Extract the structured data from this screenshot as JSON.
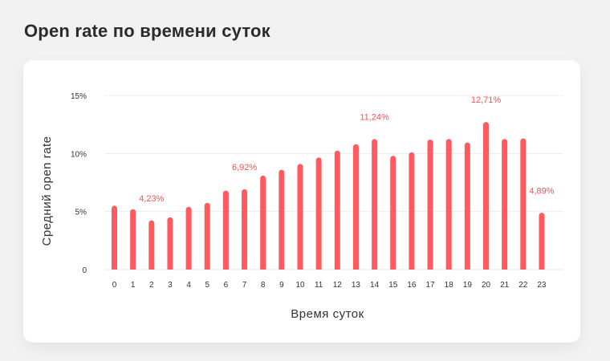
{
  "page": {
    "title": "Open rate по времени суток"
  },
  "chart_data": {
    "type": "bar",
    "title": "",
    "xlabel": "Время суток",
    "ylabel": "Средний open rate",
    "ylim": [
      0,
      15
    ],
    "y_ticks": [
      0,
      5,
      10,
      15
    ],
    "y_tick_labels": [
      "0",
      "5%",
      "10%",
      "15%"
    ],
    "grid": true,
    "categories": [
      "0",
      "1",
      "2",
      "3",
      "4",
      "5",
      "6",
      "7",
      "8",
      "9",
      "10",
      "11",
      "12",
      "13",
      "14",
      "15",
      "16",
      "17",
      "18",
      "19",
      "20",
      "21",
      "22",
      "23"
    ],
    "series": [
      {
        "values": [
          5.5,
          5.2,
          4.23,
          4.5,
          5.4,
          5.75,
          6.8,
          6.92,
          8.1,
          8.6,
          9.1,
          9.65,
          10.25,
          10.8,
          11.24,
          9.8,
          10.1,
          11.2,
          11.25,
          10.95,
          12.71,
          11.25,
          11.3,
          4.89
        ],
        "color": "#ff5a5f"
      }
    ],
    "annotations": [
      {
        "category": "2",
        "text": "4,23%"
      },
      {
        "category": "7",
        "text": "6,92%"
      },
      {
        "category": "14",
        "text": "11,24%"
      },
      {
        "category": "20",
        "text": "12,71%"
      },
      {
        "category": "23",
        "text": "4,89%"
      }
    ]
  }
}
